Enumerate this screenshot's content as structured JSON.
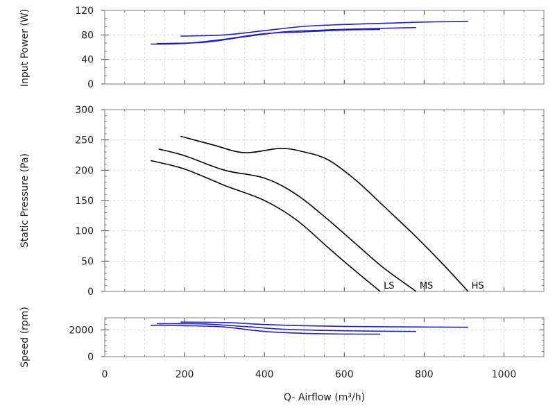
{
  "chart_data": [
    {
      "type": "line",
      "ylabel": "Input Power (W)",
      "ylim": [
        0,
        120
      ],
      "yticks": [
        0,
        40,
        80,
        120
      ],
      "xlim": [
        0,
        1100
      ],
      "grid": true,
      "color": "#2020c0",
      "series": [
        {
          "x": [
            190,
            300,
            400,
            500,
            600,
            700,
            800,
            910
          ],
          "values": [
            78,
            80,
            87,
            94,
            97,
            99,
            101,
            102
          ]
        },
        {
          "x": [
            130,
            250,
            350,
            450,
            550,
            650,
            780
          ],
          "values": [
            66,
            68,
            77,
            85,
            88,
            90,
            92
          ]
        },
        {
          "x": [
            115,
            200,
            300,
            400,
            500,
            600,
            690
          ],
          "values": [
            65,
            66,
            73,
            82,
            85,
            88,
            89
          ]
        }
      ]
    },
    {
      "type": "line",
      "ylabel": "Static Pressure (Pa)",
      "ylim": [
        0,
        300
      ],
      "yticks": [
        0,
        50,
        100,
        150,
        200,
        250,
        300
      ],
      "xlim": [
        0,
        1100
      ],
      "grid": true,
      "color": "#000000",
      "series": [
        {
          "name": "LS",
          "x": [
            115,
            200,
            300,
            400,
            480,
            560,
            620,
            690
          ],
          "values": [
            216,
            202,
            175,
            150,
            118,
            72,
            38,
            0
          ]
        },
        {
          "name": "MS",
          "x": [
            135,
            200,
            300,
            400,
            480,
            560,
            640,
            700,
            780
          ],
          "values": [
            235,
            224,
            200,
            187,
            160,
            118,
            72,
            38,
            0
          ]
        },
        {
          "name": "HS",
          "x": [
            190,
            270,
            350,
            440,
            500,
            560,
            630,
            700,
            780,
            850,
            910
          ],
          "values": [
            256,
            242,
            229,
            236,
            230,
            217,
            183,
            140,
            90,
            43,
            0
          ]
        }
      ]
    },
    {
      "type": "line",
      "ylabel": "Speed (rpm)",
      "ylim": [
        0,
        2900
      ],
      "yticks": [
        0,
        2000
      ],
      "xlabel": "Q- Airflow (m³/h)",
      "xlim": [
        0,
        1100
      ],
      "xticks": [
        0,
        200,
        400,
        600,
        800,
        1000
      ],
      "grid": true,
      "color": "#2020c0",
      "series": [
        {
          "x": [
            190,
            300,
            400,
            500,
            600,
            700,
            800,
            910
          ],
          "values": [
            2580,
            2550,
            2400,
            2310,
            2260,
            2230,
            2210,
            2190
          ]
        },
        {
          "x": [
            130,
            250,
            350,
            450,
            550,
            650,
            780
          ],
          "values": [
            2460,
            2440,
            2250,
            2040,
            1960,
            1910,
            1880
          ]
        },
        {
          "x": [
            115,
            200,
            300,
            400,
            500,
            600,
            690
          ],
          "values": [
            2340,
            2310,
            2210,
            1880,
            1740,
            1690,
            1680
          ]
        }
      ]
    }
  ]
}
